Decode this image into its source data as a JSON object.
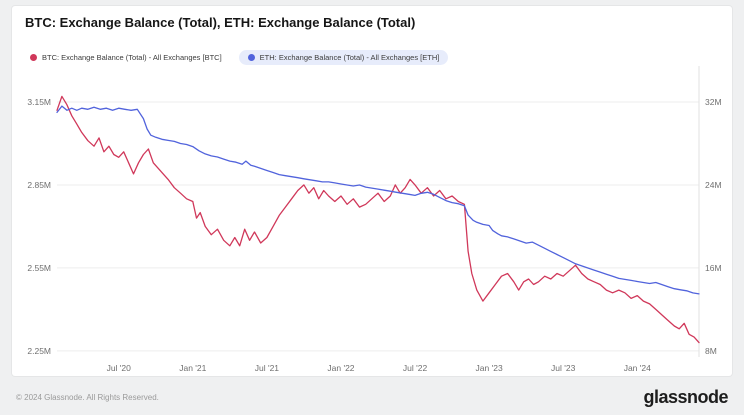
{
  "page": {
    "title": "BTC: Exchange Balance (Total), ETH: Exchange Balance (Total)"
  },
  "legend": {
    "items": [
      {
        "id": "btc",
        "label": "BTC: Exchange Balance (Total) - All Exchanges [BTC]",
        "color": "#d0385a",
        "selected": false
      },
      {
        "id": "eth",
        "label": "ETH: Exchange Balance (Total) - All Exchanges [ETH]",
        "color": "#5163dc",
        "selected": true
      }
    ]
  },
  "footer": {
    "copyright": "© 2024 Glassnode. All Rights Reserved.",
    "brand": "glassnode"
  },
  "chart_data": {
    "type": "line",
    "title": "BTC: Exchange Balance (Total), ETH: Exchange Balance (Total)",
    "grid": "horizontal",
    "legend_position": "top-left",
    "t_note": "t = months since Feb 2020; data ends Jun 2024",
    "t_range": [
      0,
      52
    ],
    "x_ticks": [
      {
        "t": 5,
        "label": "Jul '20"
      },
      {
        "t": 11,
        "label": "Jan '21"
      },
      {
        "t": 17,
        "label": "Jul '21"
      },
      {
        "t": 23,
        "label": "Jan '22"
      },
      {
        "t": 29,
        "label": "Jul '22"
      },
      {
        "t": 35,
        "label": "Jan '23"
      },
      {
        "t": 41,
        "label": "Jul '23"
      },
      {
        "t": 47,
        "label": "Jan '24"
      }
    ],
    "left_axis": {
      "unit": "BTC (millions)",
      "range": [
        2.228,
        3.28
      ],
      "ticks": [
        {
          "v": 3.15,
          "label": "3.15M"
        },
        {
          "v": 2.85,
          "label": "2.85M"
        },
        {
          "v": 2.55,
          "label": "2.55M"
        },
        {
          "v": 2.25,
          "label": "2.25M"
        }
      ]
    },
    "right_axis": {
      "unit": "ETH (millions)",
      "range": [
        7.42,
        35.47
      ],
      "ticks": [
        {
          "v": 32,
          "label": "32M"
        },
        {
          "v": 24,
          "label": "24M"
        },
        {
          "v": 16,
          "label": "16M"
        },
        {
          "v": 8,
          "label": "8M"
        }
      ]
    },
    "series": [
      {
        "id": "btc",
        "name": "BTC: Exchange Balance (Total) - All Exchanges [BTC]",
        "axis": "left",
        "color": "#d0385a",
        "points": [
          [
            0,
            3.12
          ],
          [
            0.4,
            3.17
          ],
          [
            0.8,
            3.14
          ],
          [
            1.2,
            3.1
          ],
          [
            1.6,
            3.07
          ],
          [
            2,
            3.04
          ],
          [
            2.5,
            3.01
          ],
          [
            3,
            2.99
          ],
          [
            3.4,
            3.02
          ],
          [
            3.8,
            2.97
          ],
          [
            4.2,
            2.99
          ],
          [
            4.6,
            2.96
          ],
          [
            5,
            2.95
          ],
          [
            5.4,
            2.97
          ],
          [
            5.8,
            2.93
          ],
          [
            6.2,
            2.89
          ],
          [
            6.6,
            2.93
          ],
          [
            7,
            2.96
          ],
          [
            7.4,
            2.98
          ],
          [
            7.8,
            2.93
          ],
          [
            8.2,
            2.91
          ],
          [
            8.6,
            2.89
          ],
          [
            9,
            2.87
          ],
          [
            9.5,
            2.84
          ],
          [
            10,
            2.82
          ],
          [
            10.5,
            2.8
          ],
          [
            11,
            2.79
          ],
          [
            11.3,
            2.73
          ],
          [
            11.6,
            2.75
          ],
          [
            12,
            2.7
          ],
          [
            12.5,
            2.67
          ],
          [
            13,
            2.69
          ],
          [
            13.5,
            2.65
          ],
          [
            14,
            2.63
          ],
          [
            14.4,
            2.66
          ],
          [
            14.8,
            2.63
          ],
          [
            15.2,
            2.69
          ],
          [
            15.6,
            2.65
          ],
          [
            16,
            2.68
          ],
          [
            16.5,
            2.64
          ],
          [
            17,
            2.66
          ],
          [
            17.5,
            2.7
          ],
          [
            18,
            2.74
          ],
          [
            18.5,
            2.77
          ],
          [
            19,
            2.8
          ],
          [
            19.5,
            2.83
          ],
          [
            20,
            2.85
          ],
          [
            20.4,
            2.82
          ],
          [
            20.8,
            2.84
          ],
          [
            21.2,
            2.8
          ],
          [
            21.6,
            2.83
          ],
          [
            22,
            2.81
          ],
          [
            22.5,
            2.79
          ],
          [
            23,
            2.81
          ],
          [
            23.5,
            2.78
          ],
          [
            24,
            2.8
          ],
          [
            24.5,
            2.77
          ],
          [
            25,
            2.78
          ],
          [
            25.5,
            2.8
          ],
          [
            26,
            2.82
          ],
          [
            26.5,
            2.79
          ],
          [
            27,
            2.81
          ],
          [
            27.4,
            2.85
          ],
          [
            27.8,
            2.82
          ],
          [
            28.2,
            2.84
          ],
          [
            28.6,
            2.87
          ],
          [
            29,
            2.85
          ],
          [
            29.5,
            2.82
          ],
          [
            30,
            2.84
          ],
          [
            30.5,
            2.81
          ],
          [
            31,
            2.83
          ],
          [
            31.5,
            2.8
          ],
          [
            32,
            2.81
          ],
          [
            32.5,
            2.79
          ],
          [
            33,
            2.78
          ],
          [
            33.3,
            2.61
          ],
          [
            33.6,
            2.53
          ],
          [
            34,
            2.47
          ],
          [
            34.5,
            2.43
          ],
          [
            35,
            2.46
          ],
          [
            35.5,
            2.49
          ],
          [
            36,
            2.52
          ],
          [
            36.5,
            2.53
          ],
          [
            37,
            2.5
          ],
          [
            37.4,
            2.47
          ],
          [
            37.8,
            2.5
          ],
          [
            38.2,
            2.51
          ],
          [
            38.6,
            2.49
          ],
          [
            39,
            2.5
          ],
          [
            39.5,
            2.52
          ],
          [
            40,
            2.51
          ],
          [
            40.5,
            2.53
          ],
          [
            41,
            2.52
          ],
          [
            41.5,
            2.54
          ],
          [
            42,
            2.56
          ],
          [
            42.5,
            2.53
          ],
          [
            43,
            2.51
          ],
          [
            43.5,
            2.5
          ],
          [
            44,
            2.49
          ],
          [
            44.5,
            2.47
          ],
          [
            45,
            2.46
          ],
          [
            45.5,
            2.47
          ],
          [
            46,
            2.46
          ],
          [
            46.5,
            2.44
          ],
          [
            47,
            2.45
          ],
          [
            47.5,
            2.43
          ],
          [
            48,
            2.42
          ],
          [
            48.5,
            2.4
          ],
          [
            49,
            2.38
          ],
          [
            49.5,
            2.36
          ],
          [
            50,
            2.34
          ],
          [
            50.4,
            2.33
          ],
          [
            50.8,
            2.35
          ],
          [
            51.2,
            2.31
          ],
          [
            51.6,
            2.3
          ],
          [
            52,
            2.28
          ]
        ]
      },
      {
        "id": "eth",
        "name": "ETH: Exchange Balance (Total) - All Exchanges [ETH]",
        "axis": "right",
        "color": "#5163dc",
        "points": [
          [
            0,
            31.0
          ],
          [
            0.4,
            31.6
          ],
          [
            0.8,
            31.2
          ],
          [
            1.2,
            31.4
          ],
          [
            1.6,
            31.2
          ],
          [
            2,
            31.4
          ],
          [
            2.5,
            31.3
          ],
          [
            3,
            31.5
          ],
          [
            3.5,
            31.3
          ],
          [
            4,
            31.4
          ],
          [
            4.5,
            31.2
          ],
          [
            5,
            31.4
          ],
          [
            5.5,
            31.3
          ],
          [
            6,
            31.2
          ],
          [
            6.5,
            31.3
          ],
          [
            7,
            30.4
          ],
          [
            7.3,
            29.4
          ],
          [
            7.6,
            28.8
          ],
          [
            8,
            28.6
          ],
          [
            8.5,
            28.4
          ],
          [
            9,
            28.3
          ],
          [
            9.5,
            28.2
          ],
          [
            10,
            28.0
          ],
          [
            10.5,
            27.9
          ],
          [
            11,
            27.7
          ],
          [
            11.5,
            27.3
          ],
          [
            12,
            27.0
          ],
          [
            12.5,
            26.8
          ],
          [
            13,
            26.7
          ],
          [
            13.5,
            26.5
          ],
          [
            14,
            26.3
          ],
          [
            14.5,
            26.2
          ],
          [
            15,
            26.0
          ],
          [
            15.3,
            26.3
          ],
          [
            15.7,
            25.9
          ],
          [
            16,
            25.8
          ],
          [
            16.5,
            25.6
          ],
          [
            17,
            25.4
          ],
          [
            17.5,
            25.2
          ],
          [
            18,
            25.0
          ],
          [
            18.5,
            24.9
          ],
          [
            19,
            24.8
          ],
          [
            19.5,
            24.7
          ],
          [
            20,
            24.6
          ],
          [
            20.5,
            24.5
          ],
          [
            21,
            24.4
          ],
          [
            21.5,
            24.3
          ],
          [
            22,
            24.3
          ],
          [
            22.5,
            24.2
          ],
          [
            23,
            24.1
          ],
          [
            23.5,
            24.0
          ],
          [
            24,
            23.9
          ],
          [
            24.5,
            24.0
          ],
          [
            25,
            23.8
          ],
          [
            25.5,
            23.7
          ],
          [
            26,
            23.6
          ],
          [
            26.5,
            23.5
          ],
          [
            27,
            23.4
          ],
          [
            27.5,
            23.3
          ],
          [
            28,
            23.2
          ],
          [
            28.5,
            23.1
          ],
          [
            29,
            23.0
          ],
          [
            29.5,
            23.2
          ],
          [
            30,
            23.3
          ],
          [
            30.5,
            23.1
          ],
          [
            31,
            22.8
          ],
          [
            31.5,
            22.5
          ],
          [
            32,
            22.3
          ],
          [
            32.5,
            22.2
          ],
          [
            33,
            22.0
          ],
          [
            33.3,
            21.1
          ],
          [
            33.7,
            20.6
          ],
          [
            34,
            20.4
          ],
          [
            34.5,
            20.2
          ],
          [
            35,
            20.1
          ],
          [
            35.3,
            19.6
          ],
          [
            35.7,
            19.3
          ],
          [
            36,
            19.1
          ],
          [
            36.5,
            19.0
          ],
          [
            37,
            18.8
          ],
          [
            37.5,
            18.6
          ],
          [
            38,
            18.4
          ],
          [
            38.5,
            18.5
          ],
          [
            39,
            18.2
          ],
          [
            39.5,
            17.9
          ],
          [
            40,
            17.6
          ],
          [
            40.5,
            17.3
          ],
          [
            41,
            17.0
          ],
          [
            41.5,
            16.7
          ],
          [
            42,
            16.4
          ],
          [
            42.5,
            16.2
          ],
          [
            43,
            16.0
          ],
          [
            43.5,
            15.8
          ],
          [
            44,
            15.6
          ],
          [
            44.5,
            15.4
          ],
          [
            45,
            15.2
          ],
          [
            45.5,
            15.0
          ],
          [
            46,
            14.9
          ],
          [
            46.5,
            14.8
          ],
          [
            47,
            14.7
          ],
          [
            47.5,
            14.6
          ],
          [
            48,
            14.5
          ],
          [
            48.5,
            14.6
          ],
          [
            49,
            14.4
          ],
          [
            49.5,
            14.2
          ],
          [
            50,
            14.0
          ],
          [
            50.5,
            13.9
          ],
          [
            51,
            13.8
          ],
          [
            51.5,
            13.6
          ],
          [
            52,
            13.5
          ]
        ]
      }
    ]
  }
}
